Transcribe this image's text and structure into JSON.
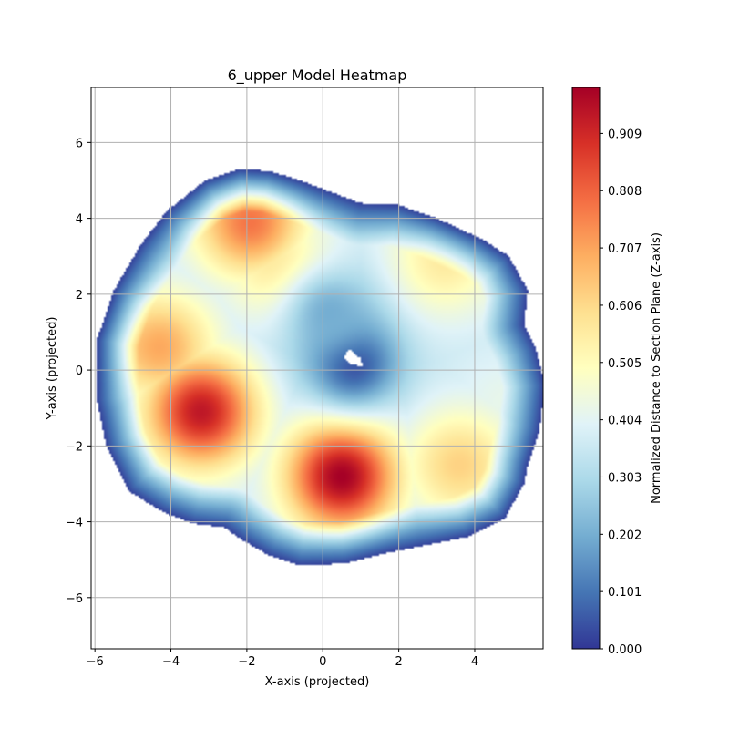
{
  "chart_data": {
    "type": "heatmap",
    "title": "6_upper Model Heatmap",
    "xlabel": "X-axis (projected)",
    "ylabel": "Y-axis (projected)",
    "xlim": [
      -6.1,
      5.8
    ],
    "ylim": [
      -7.35,
      7.45
    ],
    "x_ticks": [
      -6,
      -4,
      -2,
      0,
      2,
      4
    ],
    "x_tick_labels": [
      "−6",
      "−4",
      "−2",
      "0",
      "2",
      "4"
    ],
    "y_ticks": [
      -6,
      -4,
      -2,
      0,
      2,
      4,
      6
    ],
    "y_tick_labels": [
      "−6",
      "−4",
      "−2",
      "0",
      "2",
      "4",
      "6"
    ],
    "grid": true,
    "colormap": "RdYlBu_r",
    "colorbar": {
      "label": "Normalized Distance to Section Plane (Z-axis)",
      "range": [
        0.0,
        0.99
      ],
      "ticks": [
        0.0,
        0.101,
        0.202,
        0.303,
        0.404,
        0.505,
        0.606,
        0.707,
        0.808,
        0.909
      ],
      "tick_labels": [
        "0.000",
        "0.101",
        "0.202",
        "0.303",
        "0.404",
        "0.505",
        "0.606",
        "0.707",
        "0.808",
        "0.909"
      ]
    },
    "outline": [
      [
        -2.2,
        5.3
      ],
      [
        -1.4,
        5.25
      ],
      [
        -0.6,
        5.0
      ],
      [
        0.2,
        4.7
      ],
      [
        1.0,
        4.4
      ],
      [
        2.0,
        4.35
      ],
      [
        3.0,
        4.0
      ],
      [
        4.2,
        3.45
      ],
      [
        4.9,
        3.0
      ],
      [
        5.4,
        2.1
      ],
      [
        5.3,
        1.2
      ],
      [
        5.6,
        0.6
      ],
      [
        5.85,
        -0.4
      ],
      [
        5.7,
        -1.6
      ],
      [
        5.4,
        -2.5
      ],
      [
        5.3,
        -3.0
      ],
      [
        4.8,
        -3.9
      ],
      [
        3.8,
        -4.4
      ],
      [
        2.8,
        -4.6
      ],
      [
        1.8,
        -4.8
      ],
      [
        0.6,
        -5.1
      ],
      [
        -0.6,
        -5.15
      ],
      [
        -1.4,
        -4.9
      ],
      [
        -2.1,
        -4.5
      ],
      [
        -2.6,
        -4.15
      ],
      [
        -3.4,
        -4.05
      ],
      [
        -4.2,
        -3.75
      ],
      [
        -5.1,
        -3.2
      ],
      [
        -5.7,
        -2.0
      ],
      [
        -5.95,
        -0.8
      ],
      [
        -5.95,
        0.8
      ],
      [
        -5.5,
        2.1
      ],
      [
        -4.8,
        3.3
      ],
      [
        -4.1,
        4.2
      ],
      [
        -3.1,
        5.0
      ]
    ],
    "hole": [
      [
        0.7,
        0.55
      ],
      [
        1.0,
        0.3
      ],
      [
        1.05,
        0.1
      ],
      [
        0.75,
        0.15
      ],
      [
        0.55,
        0.35
      ]
    ],
    "hotspots": [
      {
        "x": 0.5,
        "y": -2.8,
        "value": 0.99
      },
      {
        "x": -3.2,
        "y": -1.1,
        "value": 0.94
      },
      {
        "x": -4.3,
        "y": 0.6,
        "value": 0.7
      },
      {
        "x": -1.9,
        "y": 3.9,
        "value": 0.78
      },
      {
        "x": -1.2,
        "y": 2.8,
        "value": 0.58
      },
      {
        "x": 3.6,
        "y": -2.5,
        "value": 0.62
      },
      {
        "x": 3.2,
        "y": 2.9,
        "value": 0.56
      },
      {
        "x": 4.8,
        "y": -0.9,
        "value": 0.42
      }
    ],
    "coldspots": [
      {
        "x": 0.8,
        "y": 0.2,
        "value": 0.02
      },
      {
        "x": 0.2,
        "y": 1.5,
        "value": 0.2
      }
    ],
    "rim_value": 0.02,
    "interior_value": 0.36
  }
}
